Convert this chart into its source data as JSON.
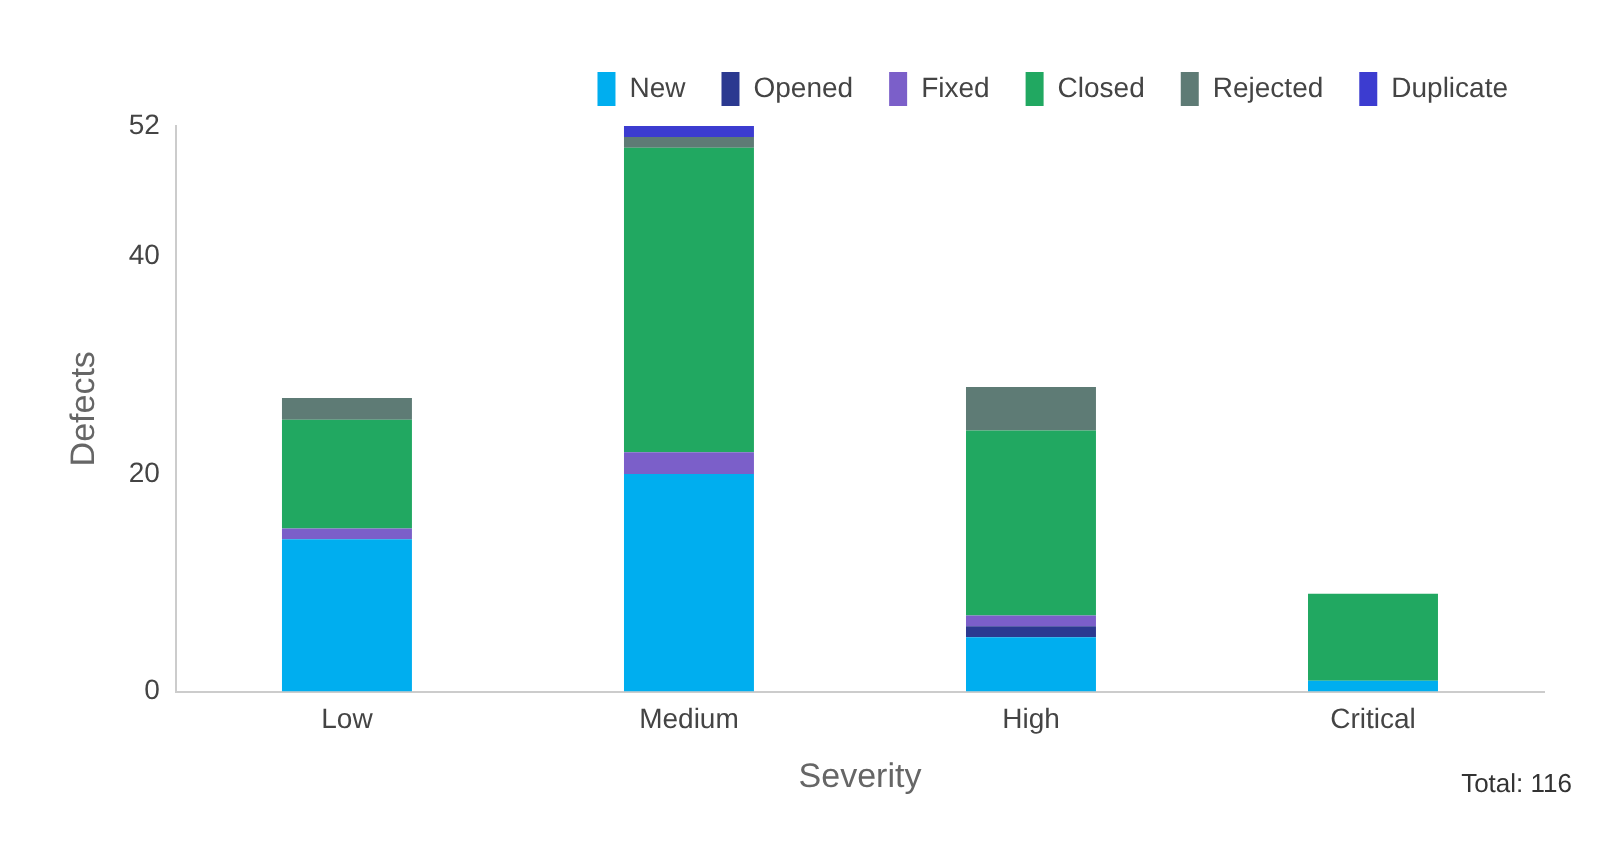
{
  "chart_data": {
    "type": "bar",
    "stacked": true,
    "xlabel": "Severity",
    "ylabel": "Defects",
    "categories": [
      "Low",
      "Medium",
      "High",
      "Critical"
    ],
    "series": [
      {
        "name": "New",
        "color": "#00aeef",
        "values": [
          14,
          20,
          5,
          1
        ]
      },
      {
        "name": "Opened",
        "color": "#2b3990",
        "values": [
          0,
          0,
          1,
          0
        ]
      },
      {
        "name": "Fixed",
        "color": "#7b5fc9",
        "values": [
          1,
          2,
          1,
          0
        ]
      },
      {
        "name": "Closed",
        "color": "#21a861",
        "values": [
          10,
          28,
          17,
          8
        ]
      },
      {
        "name": "Rejected",
        "color": "#5e7b75",
        "values": [
          2,
          1,
          4,
          0
        ]
      },
      {
        "name": "Duplicate",
        "color": "#3c3cd0",
        "values": [
          0,
          1,
          0,
          0
        ]
      }
    ],
    "ylim": [
      0,
      52
    ],
    "yticks": [
      0,
      20,
      40,
      52
    ],
    "grid": false,
    "legend": "top right",
    "annotations": [
      "Total: 116"
    ]
  }
}
